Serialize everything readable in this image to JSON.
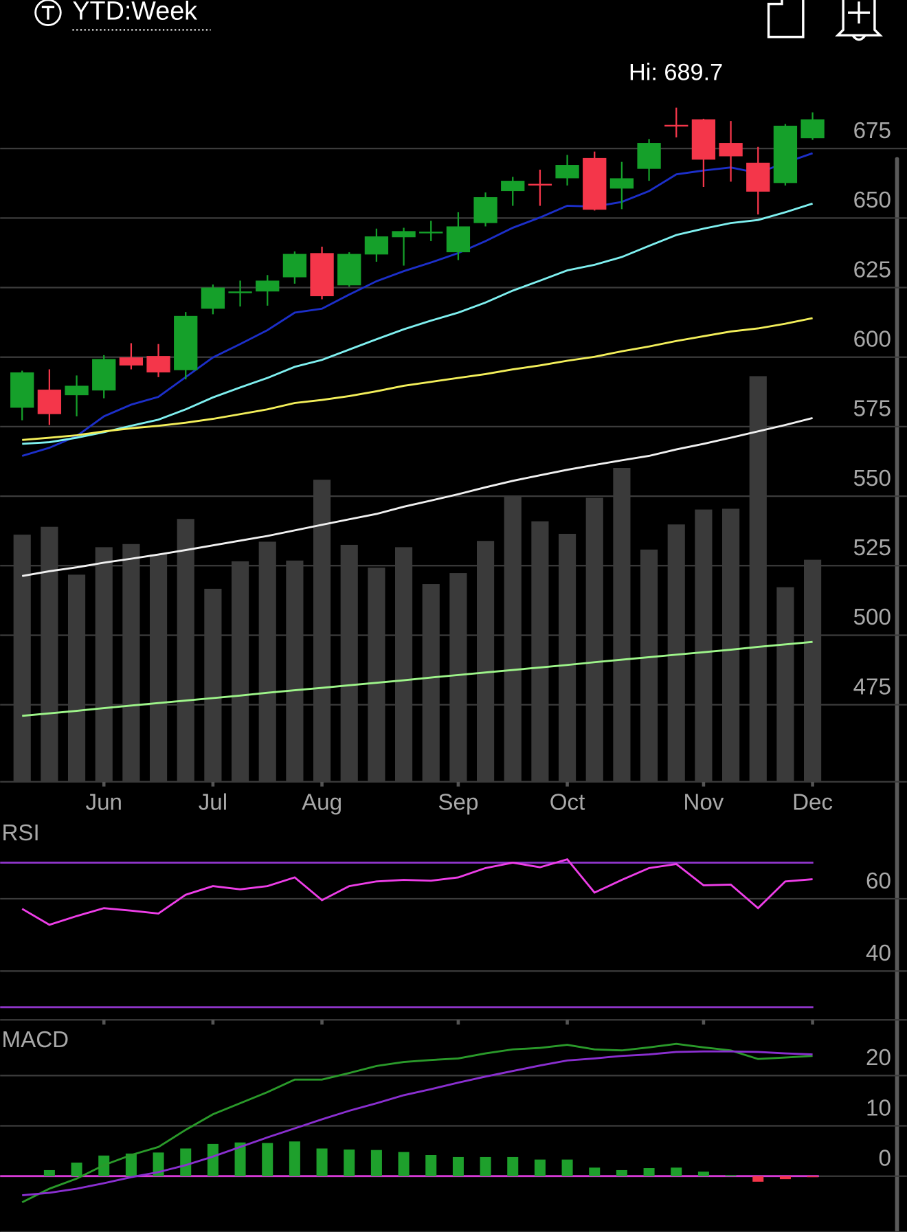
{
  "header": {
    "title": "YTD:Week"
  },
  "chart_data": [
    {
      "type": "candlestick",
      "annotation": "Hi: 689.7",
      "categories": [
        null,
        null,
        null,
        "Jun",
        null,
        null,
        null,
        "Jul",
        null,
        null,
        null,
        "Aug",
        null,
        null,
        null,
        null,
        "Sep",
        null,
        null,
        null,
        "Oct",
        null,
        null,
        null,
        null,
        "Nov",
        null,
        null,
        null,
        "Dec"
      ],
      "open": [
        581.8,
        588.3,
        586.3,
        588.0,
        599.9,
        600.4,
        595.3,
        617.4,
        623.0,
        623.6,
        628.7,
        637.4,
        625.8,
        636.9,
        643.1,
        644.5,
        637.7,
        648.2,
        659.7,
        662.3,
        664.3,
        671.6,
        660.6,
        667.7,
        683.5,
        685.5,
        677.0,
        669.9,
        662.6,
        678.7
      ],
      "high": [
        595.1,
        595.6,
        593.4,
        600.7,
        605.0,
        604.7,
        616.2,
        626.1,
        627.5,
        629.5,
        638.0,
        639.7,
        637.7,
        646.2,
        646.5,
        649.0,
        652.1,
        659.2,
        664.8,
        667.4,
        672.7,
        673.9,
        670.2,
        678.4,
        689.7,
        685.7,
        684.9,
        675.6,
        683.8,
        688.0
      ],
      "low": [
        577.3,
        575.6,
        578.7,
        585.2,
        595.6,
        592.8,
        592.0,
        615.4,
        618.2,
        618.5,
        626.4,
        620.8,
        625.3,
        634.3,
        632.9,
        641.7,
        634.9,
        647.0,
        654.4,
        654.4,
        661.7,
        652.7,
        653.2,
        663.4,
        679.0,
        661.2,
        663.1,
        651.3,
        661.7,
        678.1
      ],
      "close": [
        594.5,
        579.5,
        589.7,
        599.3,
        597.0,
        594.5,
        614.8,
        625.0,
        623.6,
        627.5,
        637.1,
        621.9,
        637.1,
        643.4,
        645.3,
        645.1,
        647.0,
        657.5,
        663.4,
        661.7,
        669.1,
        653.0,
        664.3,
        677.0,
        682.9,
        671.0,
        672.2,
        659.5,
        683.2,
        685.5
      ],
      "up_color": "#15a02a",
      "down_color": "#f4364a",
      "series": [
        {
          "color": "#1c2fc9",
          "values": [
            564.5,
            567.4,
            571.6,
            578.7,
            582.9,
            585.7,
            592.8,
            599.9,
            604.7,
            609.7,
            616.0,
            617.4,
            622.5,
            627.3,
            630.9,
            634.0,
            637.4,
            641.7,
            646.5,
            650.2,
            654.4,
            654.1,
            655.8,
            659.7,
            665.7,
            667.1,
            668.2,
            666.2,
            669.9,
            673.3
          ]
        },
        {
          "color": "#7ff0f0",
          "values": [
            568.8,
            569.4,
            571.0,
            573.0,
            575.3,
            577.5,
            581.2,
            585.5,
            589.1,
            592.5,
            596.5,
            599.0,
            602.7,
            606.4,
            610.0,
            613.1,
            616.0,
            619.6,
            623.9,
            627.5,
            631.2,
            633.2,
            636.0,
            640.0,
            643.9,
            646.2,
            648.2,
            649.3,
            652.1,
            655.2
          ]
        },
        {
          "color": "#f3ef5a",
          "values": [
            570.2,
            571.0,
            571.9,
            573.3,
            574.4,
            575.3,
            576.4,
            577.8,
            579.5,
            581.2,
            583.5,
            584.6,
            586.0,
            587.7,
            589.7,
            591.1,
            592.5,
            593.9,
            595.6,
            597.0,
            598.7,
            600.1,
            602.1,
            603.8,
            605.8,
            607.5,
            609.2,
            610.3,
            612.0,
            614.0
          ]
        },
        {
          "color": "#f0f0f0",
          "values": [
            521.3,
            523.0,
            524.4,
            526.1,
            527.5,
            529.0,
            530.6,
            532.3,
            534.0,
            535.7,
            537.7,
            539.7,
            541.7,
            543.6,
            546.2,
            548.4,
            550.7,
            553.2,
            555.5,
            557.5,
            559.5,
            561.2,
            562.9,
            564.5,
            566.8,
            568.8,
            571.0,
            573.3,
            575.6,
            578.1
          ]
        },
        {
          "color": "#9ef58a",
          "values": [
            471.0,
            471.9,
            472.8,
            473.8,
            474.7,
            475.6,
            476.5,
            477.4,
            478.3,
            479.3,
            480.2,
            481.1,
            482.0,
            482.9,
            483.8,
            484.8,
            485.7,
            486.6,
            487.5,
            488.4,
            489.3,
            490.3,
            491.2,
            492.1,
            493.0,
            493.9,
            494.8,
            495.8,
            496.7,
            497.6
          ]
        }
      ],
      "volume": {
        "color": "#3a3a3a",
        "values": [
          315,
          325,
          264,
          299,
          303,
          290,
          335,
          246,
          281,
          306,
          282,
          385,
          302,
          273,
          299,
          252,
          266,
          307,
          364,
          332,
          316,
          362,
          400,
          296,
          328,
          347,
          348,
          517,
          248,
          283
        ]
      },
      "ylim": [
        447.3,
        694.5
      ],
      "yticks": [
        475,
        500,
        525,
        550,
        575,
        600,
        625,
        650,
        675
      ],
      "grid": true
    },
    {
      "type": "line",
      "title": "RSI",
      "series": [
        {
          "color": "#ee3ee8",
          "values": [
            57.2,
            52.8,
            55.2,
            57.4,
            56.7,
            55.9,
            61.1,
            63.5,
            62.6,
            63.5,
            65.9,
            59.6,
            63.5,
            64.8,
            65.2,
            65.0,
            65.9,
            68.5,
            70.0,
            68.7,
            70.9,
            61.7,
            65.2,
            68.5,
            69.6,
            63.7,
            63.9,
            57.4,
            64.8,
            65.4
          ]
        }
      ],
      "levels": [
        70,
        30
      ],
      "level_color": "#8e35c8",
      "ylim": [
        26.5,
        80.4
      ],
      "yticks": [
        40,
        60
      ],
      "grid": true
    },
    {
      "type": "macd",
      "title": "MACD",
      "series": [
        {
          "color": "#2a9a2a",
          "values": [
            -5.2,
            -2.5,
            -0.5,
            2.2,
            4.2,
            5.8,
            9.2,
            12.3,
            14.5,
            16.7,
            19.2,
            19.2,
            20.5,
            21.9,
            22.7,
            23.1,
            23.4,
            24.4,
            25.2,
            25.5,
            26.1,
            25.2,
            25.0,
            25.6,
            26.3,
            25.6,
            25.0,
            23.3,
            23.6,
            23.9
          ]
        },
        {
          "color": "#8a2fd0",
          "values": [
            -3.8,
            -3.3,
            -2.5,
            -1.4,
            -0.2,
            0.8,
            2.2,
            3.9,
            5.8,
            7.7,
            9.5,
            11.3,
            13.0,
            14.5,
            16.1,
            17.3,
            18.6,
            19.8,
            20.9,
            22.0,
            23.0,
            23.4,
            23.9,
            24.2,
            24.7,
            24.8,
            24.8,
            24.7,
            24.4,
            24.2
          ]
        }
      ],
      "histogram": {
        "up_color": "#1ea02c",
        "down_color": "#f4364a",
        "values": [
          0,
          1.2,
          2.7,
          4.1,
          4.5,
          4.7,
          5.5,
          6.4,
          6.7,
          6.6,
          6.9,
          5.5,
          5.3,
          5.2,
          4.8,
          4.2,
          3.8,
          3.8,
          3.8,
          3.3,
          3.3,
          1.7,
          1.2,
          1.6,
          1.7,
          0.9,
          0.2,
          -1.1,
          -0.6,
          -0.2
        ]
      },
      "zero_color": "#d63ad6",
      "ylim": [
        -11.1,
        29.2
      ],
      "yticks": [
        0,
        10,
        20
      ],
      "grid": true
    }
  ]
}
